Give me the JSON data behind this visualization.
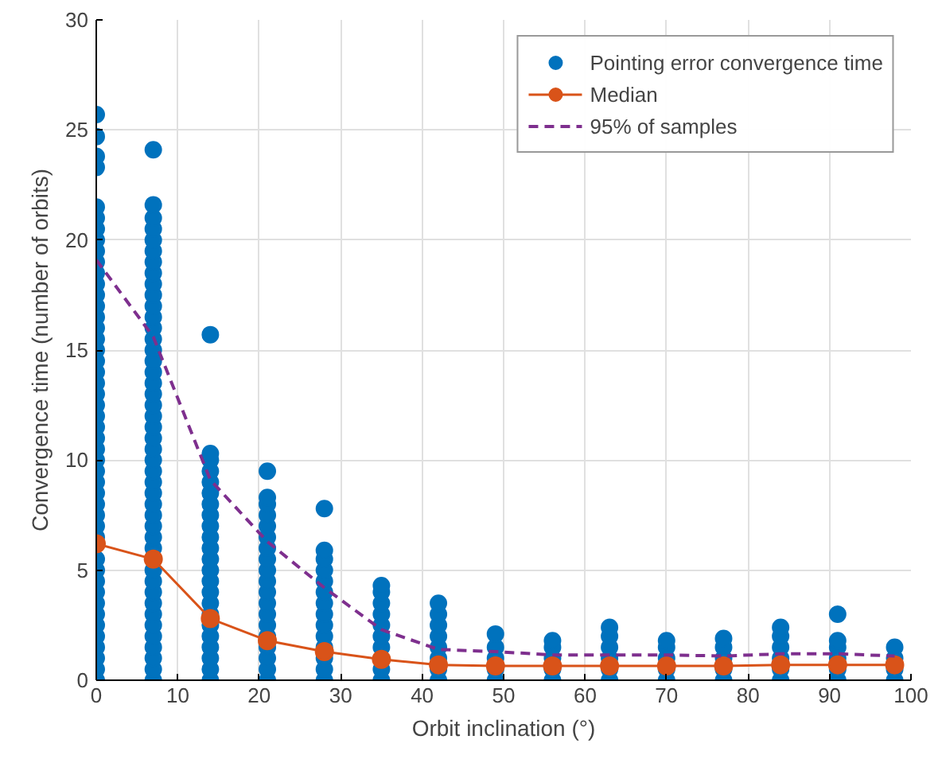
{
  "chart_data": {
    "type": "scatter",
    "xlabel": "Orbit inclination (°)",
    "ylabel": "Convergence time (number of orbits)",
    "xlim": [
      0,
      100
    ],
    "ylim": [
      0,
      30
    ],
    "xticks": [
      0,
      10,
      20,
      30,
      40,
      50,
      60,
      70,
      80,
      90,
      100
    ],
    "yticks": [
      0,
      5,
      10,
      15,
      20,
      25,
      30
    ],
    "grid": true,
    "legend": "top right",
    "series": [
      {
        "name": "Pointing error convergence time",
        "marker": "circle",
        "color": "#0072bd",
        "x": [
          0,
          0,
          0,
          0,
          0,
          0,
          0,
          0,
          0,
          0,
          0,
          0,
          0,
          0,
          0,
          0,
          0,
          0,
          0,
          0,
          0,
          0,
          0,
          0,
          0,
          0,
          0,
          0,
          0,
          0,
          0,
          0,
          0,
          0,
          0,
          0,
          0,
          0,
          0,
          0,
          0,
          0,
          0,
          0,
          0,
          0,
          0,
          7,
          7,
          7,
          7,
          7,
          7,
          7,
          7,
          7,
          7,
          7,
          7,
          7,
          7,
          7,
          7,
          7,
          7,
          7,
          7,
          7,
          7,
          7,
          7,
          7,
          7,
          7,
          7,
          7,
          7,
          7,
          7,
          7,
          7,
          7,
          7,
          7,
          7,
          7,
          7,
          7,
          7,
          7,
          7,
          14,
          14,
          14,
          14,
          14,
          14,
          14,
          14,
          14,
          14,
          14,
          14,
          14,
          14,
          14,
          14,
          14,
          14,
          14,
          14,
          14,
          14,
          14,
          21,
          21,
          21,
          21,
          21,
          21,
          21,
          21,
          21,
          21,
          21,
          21,
          21,
          21,
          21,
          21,
          21,
          21,
          21,
          28,
          28,
          28,
          28,
          28,
          28,
          28,
          28,
          28,
          28,
          28,
          28,
          28,
          28,
          35,
          35,
          35,
          35,
          35,
          35,
          35,
          35,
          35,
          42,
          42,
          42,
          42,
          42,
          42,
          42,
          42,
          49,
          49,
          49,
          49,
          49,
          56,
          56,
          56,
          56,
          56,
          63,
          63,
          63,
          63,
          63,
          63,
          70,
          70,
          70,
          70,
          70,
          77,
          77,
          77,
          77,
          77,
          84,
          84,
          84,
          84,
          84,
          84,
          91,
          91,
          91,
          91,
          91,
          91,
          98,
          98,
          98,
          98
        ],
        "values": [
          0,
          0.5,
          1,
          1.5,
          2,
          2.5,
          3,
          3.5,
          4,
          4.5,
          5,
          5.5,
          6.5,
          7,
          7.5,
          8,
          8.5,
          9,
          9.5,
          10,
          10.5,
          11,
          11.5,
          12,
          12.5,
          13,
          13.5,
          14,
          14.5,
          15,
          15.5,
          16,
          16.5,
          17,
          17.5,
          18,
          18.5,
          19,
          19.5,
          20,
          20.5,
          21,
          21.5,
          23.3,
          23.8,
          24.7,
          25.7,
          0,
          0.5,
          1,
          1.5,
          2,
          2.5,
          3,
          3.5,
          4,
          4.5,
          5,
          6,
          6.5,
          7,
          7.5,
          8,
          8.5,
          9,
          9.5,
          10,
          10.5,
          11,
          11.5,
          12,
          12.5,
          13,
          13.5,
          14,
          14.5,
          15,
          15.5,
          16,
          16.5,
          17,
          17.5,
          18,
          18.5,
          19,
          19.5,
          20,
          20.5,
          21,
          21.6,
          24.1,
          0,
          0.5,
          1,
          1.5,
          2,
          2.5,
          3,
          3.5,
          4,
          4.5,
          5,
          5.5,
          6,
          6.5,
          7,
          7.5,
          8,
          8.5,
          9,
          9.5,
          10,
          10.3,
          15.7,
          0,
          0.5,
          1,
          1.5,
          2,
          2.5,
          3,
          3.5,
          4,
          4.5,
          5,
          5.5,
          6,
          6.5,
          7,
          7.5,
          8,
          8.3,
          9.5,
          0,
          0.5,
          1,
          1.5,
          2,
          2.5,
          3,
          3.5,
          4,
          4.5,
          5,
          5.5,
          5.9,
          7.8,
          0,
          0.5,
          1.5,
          2,
          2.5,
          3,
          3.5,
          4,
          4.3,
          0,
          0.5,
          1,
          1.5,
          2,
          2.5,
          3,
          3.5,
          0,
          0.5,
          1,
          1.5,
          2.1,
          0,
          0.5,
          1,
          1.5,
          1.8,
          0,
          0.5,
          1,
          1.5,
          2,
          2.4,
          0,
          0.5,
          1,
          1.5,
          1.8,
          0,
          0.5,
          1,
          1.5,
          1.9,
          0,
          0.5,
          1,
          1.5,
          2,
          2.4,
          0,
          0.5,
          1,
          1.5,
          1.8,
          3.0,
          0,
          0.5,
          1,
          1.5
        ]
      },
      {
        "name": "Median",
        "type": "line",
        "marker": "circle",
        "line_style": "solid",
        "color": "#d95319",
        "x": [
          0,
          7,
          14,
          21,
          28,
          35,
          42,
          49,
          56,
          63,
          70,
          77,
          84,
          91,
          98
        ],
        "values": [
          6.2,
          5.5,
          2.8,
          1.8,
          1.3,
          0.95,
          0.7,
          0.65,
          0.65,
          0.65,
          0.65,
          0.65,
          0.7,
          0.7,
          0.7
        ]
      },
      {
        "name": "95% of samples",
        "type": "line",
        "marker": "none",
        "line_style": "dashed",
        "color": "#7e2f8e",
        "x": [
          0,
          7,
          14,
          21,
          28,
          35,
          42,
          49,
          56,
          63,
          70,
          77,
          84,
          91,
          98
        ],
        "values": [
          19.1,
          15.6,
          9.1,
          6.3,
          4.2,
          2.3,
          1.4,
          1.3,
          1.15,
          1.15,
          1.15,
          1.1,
          1.2,
          1.2,
          1.1
        ]
      }
    ]
  }
}
